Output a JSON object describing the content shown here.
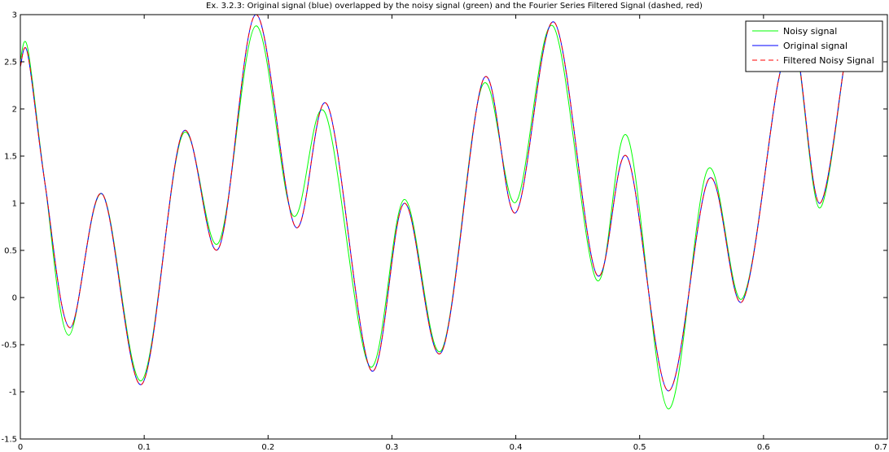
{
  "chart_data": {
    "type": "line",
    "title": "Ex. 3.2.3: Original signal (blue) overlapped by the noisy signal (green) and the Fourier Series Filtered Signal (dashed, red)",
    "xlabel": "",
    "ylabel": "",
    "xlim": [
      0,
      0.7
    ],
    "ylim": [
      -1.5,
      3
    ],
    "x_ticks": [
      "0",
      "0.1",
      "0.2",
      "0.3",
      "0.4",
      "0.5",
      "0.6",
      "0.7"
    ],
    "y_ticks": [
      "-1.5",
      "-1",
      "-0.5",
      "0",
      "0.5",
      "1",
      "1.5",
      "2",
      "2.5",
      "3"
    ],
    "grid": false,
    "legend_position": "top-right",
    "series": [
      {
        "name": "Noisy signal",
        "color": "#00ff00",
        "style": "solid",
        "points": [
          [
            0,
            2.52
          ],
          [
            0.006,
            2.64
          ],
          [
            0.02,
            1.2
          ],
          [
            0.039,
            -0.4
          ],
          [
            0.066,
            1.1
          ],
          [
            0.098,
            -0.88
          ],
          [
            0.131,
            1.73
          ],
          [
            0.16,
            0.58
          ],
          [
            0.19,
            2.88
          ],
          [
            0.22,
            0.87
          ],
          [
            0.246,
            1.96
          ],
          [
            0.282,
            -0.73
          ],
          [
            0.31,
            1.04
          ],
          [
            0.34,
            -0.56
          ],
          [
            0.373,
            2.25
          ],
          [
            0.4,
            1.01
          ],
          [
            0.43,
            2.88
          ],
          [
            0.465,
            0.19
          ],
          [
            0.49,
            1.71
          ],
          [
            0.523,
            -1.18
          ],
          [
            0.555,
            1.36
          ],
          [
            0.583,
            -0.01
          ],
          [
            0.612,
            2.3
          ],
          [
            0.626,
            2.68
          ],
          [
            0.645,
            0.95
          ],
          [
            0.665,
            2.45
          ]
        ]
      },
      {
        "name": "Original signal",
        "color": "#0000ff",
        "style": "solid",
        "points": [
          [
            0,
            2.45
          ],
          [
            0.006,
            2.58
          ],
          [
            0.02,
            1.2
          ],
          [
            0.04,
            -0.32
          ],
          [
            0.066,
            1.1
          ],
          [
            0.098,
            -0.92
          ],
          [
            0.131,
            1.75
          ],
          [
            0.16,
            0.52
          ],
          [
            0.19,
            3.0
          ],
          [
            0.222,
            0.75
          ],
          [
            0.248,
            2.04
          ],
          [
            0.283,
            -0.77
          ],
          [
            0.31,
            1.0
          ],
          [
            0.34,
            -0.58
          ],
          [
            0.374,
            2.32
          ],
          [
            0.4,
            0.9
          ],
          [
            0.431,
            2.92
          ],
          [
            0.465,
            0.25
          ],
          [
            0.49,
            1.49
          ],
          [
            0.523,
            -0.99
          ],
          [
            0.556,
            1.26
          ],
          [
            0.583,
            -0.04
          ],
          [
            0.612,
            2.3
          ],
          [
            0.626,
            2.69
          ],
          [
            0.645,
            1.0
          ],
          [
            0.665,
            2.45
          ]
        ]
      },
      {
        "name": "Filtered Noisy Signal",
        "color": "#ff0000",
        "style": "dashed",
        "points": [
          [
            0,
            2.45
          ],
          [
            0.006,
            2.58
          ],
          [
            0.02,
            1.2
          ],
          [
            0.04,
            -0.32
          ],
          [
            0.066,
            1.1
          ],
          [
            0.098,
            -0.92
          ],
          [
            0.131,
            1.75
          ],
          [
            0.16,
            0.52
          ],
          [
            0.19,
            3.0
          ],
          [
            0.222,
            0.75
          ],
          [
            0.248,
            2.04
          ],
          [
            0.283,
            -0.77
          ],
          [
            0.31,
            1.0
          ],
          [
            0.34,
            -0.58
          ],
          [
            0.374,
            2.32
          ],
          [
            0.4,
            0.9
          ],
          [
            0.431,
            2.92
          ],
          [
            0.465,
            0.25
          ],
          [
            0.49,
            1.49
          ],
          [
            0.523,
            -0.99
          ],
          [
            0.556,
            1.26
          ],
          [
            0.583,
            -0.04
          ],
          [
            0.612,
            2.3
          ],
          [
            0.626,
            2.69
          ],
          [
            0.645,
            1.0
          ],
          [
            0.665,
            2.45
          ]
        ]
      }
    ]
  }
}
